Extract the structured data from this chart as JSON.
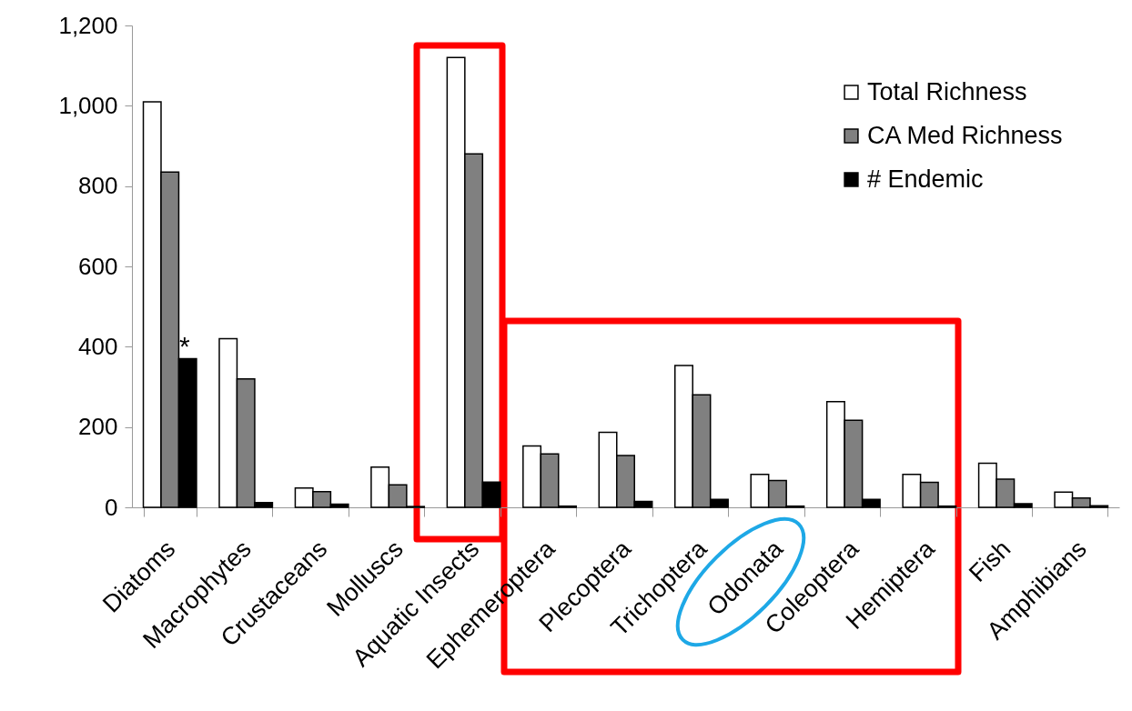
{
  "chart_data": {
    "type": "bar",
    "categories": [
      "Diatoms",
      "Macrophytes",
      "Crustaceans",
      "Molluscs",
      "Aquatic Insects",
      "Ephemeroptera",
      "Plecoptera",
      "Trichoptera",
      "Odonata",
      "Coleoptera",
      "Hemiptera",
      "Fish",
      "Amphibians"
    ],
    "series": [
      {
        "name": "Total Richness",
        "color": "#ffffff",
        "values": [
          1010,
          420,
          48,
          100,
          1120,
          153,
          187,
          353,
          82,
          263,
          82,
          110,
          38
        ]
      },
      {
        "name": "CA Med Richness",
        "color": "#808080",
        "values": [
          835,
          320,
          39,
          56,
          880,
          133,
          129,
          280,
          67,
          217,
          62,
          70,
          23
        ]
      },
      {
        "name": "# Endemic",
        "color": "#000000",
        "values": [
          370,
          12,
          8,
          2,
          63,
          3,
          15,
          20,
          3,
          20,
          3,
          9,
          4
        ]
      }
    ],
    "ylim": [
      0,
      1200
    ],
    "yticks": [
      {
        "value": 0,
        "label": "0"
      },
      {
        "value": 200,
        "label": "200"
      },
      {
        "value": 400,
        "label": "400"
      },
      {
        "value": 600,
        "label": "600"
      },
      {
        "value": 800,
        "label": "800"
      },
      {
        "value": 1000,
        "label": "1,000"
      },
      {
        "value": 1200,
        "label": "1,200"
      }
    ],
    "annotations": [
      "*"
    ],
    "legend": "top right",
    "grid": false
  }
}
